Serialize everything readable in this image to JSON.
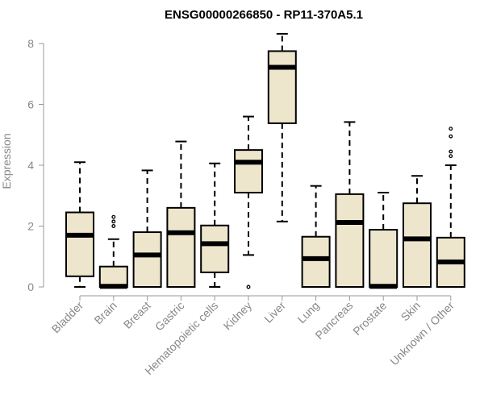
{
  "chart_data": {
    "type": "boxplot",
    "title": "ENSG00000266850 - RP11-370A5.1",
    "xlabel": "",
    "ylabel": "Expression",
    "ylim": [
      0,
      8.2
    ],
    "yticks": [
      0,
      2,
      4,
      6,
      8
    ],
    "box_color": "#ede6cc",
    "categories": [
      "Bladder",
      "Brain",
      "Breast",
      "Gastric",
      "Hematopoietic cells",
      "Kidney",
      "Liver",
      "Lung",
      "Pancreas",
      "Prostate",
      "Skin",
      "Unknown / Other"
    ],
    "boxes": [
      {
        "min": 0.0,
        "q1": 0.35,
        "median": 1.7,
        "q3": 2.45,
        "max": 4.1,
        "outliers": []
      },
      {
        "min": 0.0,
        "q1": 0.0,
        "median": 0.02,
        "q3": 0.67,
        "max": 1.57,
        "outliers": [
          2.0,
          2.15,
          2.3
        ]
      },
      {
        "min": 0.0,
        "q1": 0.0,
        "median": 1.05,
        "q3": 1.8,
        "max": 3.83,
        "outliers": []
      },
      {
        "min": 0.0,
        "q1": 0.0,
        "median": 1.78,
        "q3": 2.6,
        "max": 4.78,
        "outliers": []
      },
      {
        "min": 0.0,
        "q1": 0.48,
        "median": 1.42,
        "q3": 2.02,
        "max": 4.06,
        "outliers": []
      },
      {
        "min": 1.05,
        "q1": 3.1,
        "median": 4.1,
        "q3": 4.5,
        "max": 5.6,
        "outliers": [
          0.0
        ]
      },
      {
        "min": 2.15,
        "q1": 5.38,
        "median": 7.22,
        "q3": 7.75,
        "max": 8.32,
        "outliers": []
      },
      {
        "min": 0.0,
        "q1": 0.0,
        "median": 0.93,
        "q3": 1.65,
        "max": 3.32,
        "outliers": []
      },
      {
        "min": 0.0,
        "q1": 0.0,
        "median": 2.12,
        "q3": 3.05,
        "max": 5.42,
        "outliers": []
      },
      {
        "min": 0.0,
        "q1": 0.0,
        "median": 0.02,
        "q3": 1.88,
        "max": 3.1,
        "outliers": []
      },
      {
        "min": 0.0,
        "q1": 0.0,
        "median": 1.58,
        "q3": 2.75,
        "max": 3.65,
        "outliers": []
      },
      {
        "min": 0.0,
        "q1": 0.0,
        "median": 0.82,
        "q3": 1.62,
        "max": 4.0,
        "outliers": [
          4.3,
          4.45,
          4.95,
          5.2
        ]
      }
    ]
  }
}
